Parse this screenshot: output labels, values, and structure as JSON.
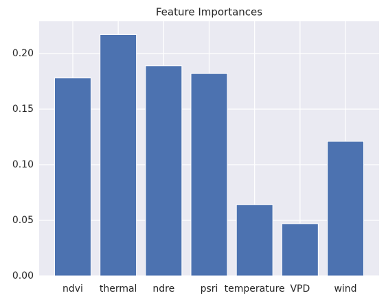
{
  "chart_data": {
    "type": "bar",
    "title": "Feature Importances",
    "categories": [
      "ndvi",
      "thermal",
      "ndre",
      "psri",
      "temperature",
      "VPD",
      "wind"
    ],
    "values": [
      0.178,
      0.217,
      0.189,
      0.182,
      0.064,
      0.047,
      0.121
    ],
    "color": "#4c72b0",
    "ylim": [
      0,
      0.229
    ],
    "yticks": [
      {
        "value": 0,
        "label": "0.00"
      },
      {
        "value": 0.05,
        "label": "0.05"
      },
      {
        "value": 0.1,
        "label": "0.10"
      },
      {
        "value": 0.15,
        "label": "0.15"
      },
      {
        "value": 0.2,
        "label": "0.20"
      }
    ],
    "grid": true
  }
}
